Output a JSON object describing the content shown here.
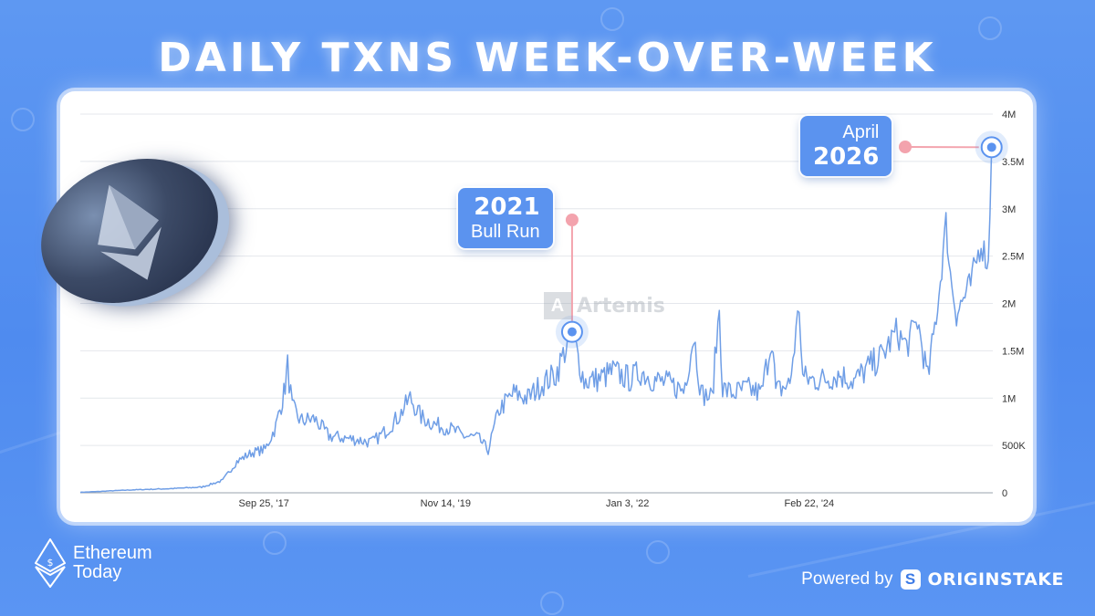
{
  "title": "DAILY TXNS WEEK-OVER-WEEK",
  "brand": {
    "name_line1": "Ethereum",
    "name_line2": "Today",
    "icon": "ethereum-logo-icon"
  },
  "powered": {
    "label": "Powered by",
    "company": "ORIGINSTAKE",
    "icon": "originstake-logo-icon"
  },
  "watermark": {
    "text": "Artemis"
  },
  "callouts": {
    "bull_run": {
      "line1": "2021",
      "line2": "Bull Run"
    },
    "april": {
      "line1": "April",
      "line2": "2026"
    }
  },
  "colors": {
    "background": "#5590f0",
    "line": "#6f9ee6",
    "callout": "#5b93ef",
    "connector": "#f3a3ad"
  },
  "chart_data": {
    "type": "line",
    "title": "DAILY TXNS WEEK-OVER-WEEK",
    "xlabel": "",
    "ylabel": "",
    "x_range": [
      "2015-07-30",
      "2026-04-20"
    ],
    "ylim": [
      0,
      4000000
    ],
    "grid": true,
    "y_axis_side": "right",
    "y_ticks": [
      {
        "v": 0,
        "label": "0"
      },
      {
        "v": 500000,
        "label": "500K"
      },
      {
        "v": 1000000,
        "label": "1M"
      },
      {
        "v": 1500000,
        "label": "1.5M"
      },
      {
        "v": 2000000,
        "label": "2M"
      },
      {
        "v": 2500000,
        "label": "2.5M"
      },
      {
        "v": 3000000,
        "label": "3M"
      },
      {
        "v": 3500000,
        "label": "3.5M"
      },
      {
        "v": 4000000,
        "label": "4M"
      }
    ],
    "x_ticks": [
      {
        "date": "2017-09-25",
        "label": "Sep 25, '17"
      },
      {
        "date": "2019-11-14",
        "label": "Nov 14, '19"
      },
      {
        "date": "2022-01-03",
        "label": "Jan 3, '22"
      },
      {
        "date": "2024-02-22",
        "label": "Feb 22, '24"
      }
    ],
    "series": [
      {
        "values": [
          [
            "2015-07-30",
            5000
          ],
          [
            "2016-03-01",
            30000
          ],
          [
            "2016-09-01",
            45000
          ],
          [
            "2017-01-01",
            60000
          ],
          [
            "2017-04-01",
            130000
          ],
          [
            "2017-06-01",
            330000
          ],
          [
            "2017-08-01",
            420000
          ],
          [
            "2017-10-01",
            460000
          ],
          [
            "2017-11-15",
            700000
          ],
          [
            "2017-12-20",
            1050000
          ],
          [
            "2018-01-05",
            1330000
          ],
          [
            "2018-01-25",
            900000
          ],
          [
            "2018-03-01",
            760000
          ],
          [
            "2018-05-01",
            780000
          ],
          [
            "2018-07-01",
            600000
          ],
          [
            "2018-09-01",
            580000
          ],
          [
            "2018-11-01",
            560000
          ],
          [
            "2019-01-01",
            530000
          ],
          [
            "2019-03-01",
            650000
          ],
          [
            "2019-05-01",
            820000
          ],
          [
            "2019-06-15",
            1000000
          ],
          [
            "2019-08-01",
            800000
          ],
          [
            "2019-10-01",
            720000
          ],
          [
            "2019-12-01",
            680000
          ],
          [
            "2020-02-01",
            600000
          ],
          [
            "2020-04-01",
            580000
          ],
          [
            "2020-05-15",
            450000
          ],
          [
            "2020-07-01",
            880000
          ],
          [
            "2020-09-01",
            1050000
          ],
          [
            "2020-11-01",
            1000000
          ],
          [
            "2021-01-01",
            1150000
          ],
          [
            "2021-03-01",
            1250000
          ],
          [
            "2021-05-10",
            1700000
          ],
          [
            "2021-07-01",
            1180000
          ],
          [
            "2021-09-01",
            1200000
          ],
          [
            "2021-11-01",
            1280000
          ],
          [
            "2022-01-15",
            1200000
          ],
          [
            "2022-03-01",
            1280000
          ],
          [
            "2022-05-01",
            1190000
          ],
          [
            "2022-07-01",
            1150000
          ],
          [
            "2022-09-01",
            1080000
          ],
          [
            "2022-10-15",
            1670000
          ],
          [
            "2022-11-15",
            1050000
          ],
          [
            "2023-01-01",
            1000000
          ],
          [
            "2023-02-01",
            1950000
          ],
          [
            "2023-02-15",
            1100000
          ],
          [
            "2023-04-01",
            1050000
          ],
          [
            "2023-06-01",
            1100000
          ],
          [
            "2023-08-01",
            1050000
          ],
          [
            "2023-09-15",
            1650000
          ],
          [
            "2023-10-01",
            1070000
          ],
          [
            "2023-12-01",
            1150000
          ],
          [
            "2024-01-10",
            1970000
          ],
          [
            "2024-01-25",
            1220000
          ],
          [
            "2024-03-01",
            1190000
          ],
          [
            "2024-05-01",
            1200000
          ],
          [
            "2024-07-01",
            1250000
          ],
          [
            "2024-09-01",
            1180000
          ],
          [
            "2024-11-01",
            1320000
          ],
          [
            "2025-01-01",
            1450000
          ],
          [
            "2025-03-01",
            1700000
          ],
          [
            "2025-04-15",
            1550000
          ],
          [
            "2025-06-01",
            1820000
          ],
          [
            "2025-07-15",
            1200000
          ],
          [
            "2025-09-01",
            2100000
          ],
          [
            "2025-10-01",
            2850000
          ],
          [
            "2025-10-20",
            2300000
          ],
          [
            "2025-11-15",
            1900000
          ],
          [
            "2026-01-15",
            2200000
          ],
          [
            "2026-03-01",
            2650000
          ],
          [
            "2026-04-01",
            2400000
          ],
          [
            "2026-04-15",
            3650000
          ]
        ]
      }
    ],
    "annotations": [
      {
        "date": "2021-05-10",
        "value": 1700000,
        "label": "2021 Bull Run"
      },
      {
        "date": "2026-04-15",
        "value": 3650000,
        "label": "April 2026"
      }
    ]
  }
}
